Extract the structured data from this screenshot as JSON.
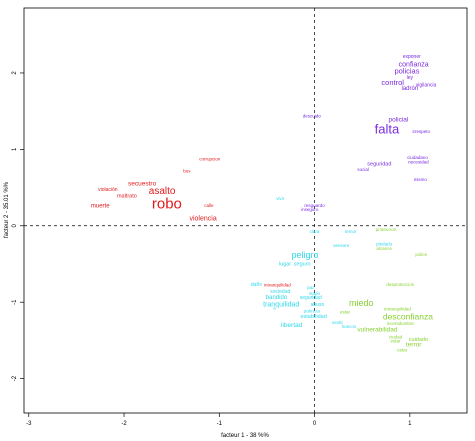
{
  "chart_data": {
    "type": "scatter",
    "title": "",
    "xlabel": "facteur 1 - 38 %%",
    "ylabel": "facteur 2 - 35.01 %%",
    "xlim": [
      -3.05,
      1.6
    ],
    "ylim": [
      -2.45,
      2.85
    ],
    "x_ticks": [
      -3,
      -2,
      -1,
      0,
      1
    ],
    "y_ticks": [
      -2,
      -1,
      0,
      1,
      2
    ],
    "reference_lines": {
      "x": 0,
      "y": 0,
      "style": "dashed"
    },
    "grid": false,
    "legend": "none",
    "colors": {
      "red": "#e31a1c",
      "purple": "#7a2be0",
      "cyan": "#2fd8ea",
      "green": "#86d130"
    },
    "points": [
      {
        "label": "exponer",
        "x": 1.02,
        "y": 2.21,
        "color": "purple",
        "size": 5
      },
      {
        "label": "confianza",
        "x": 1.04,
        "y": 2.11,
        "color": "purple",
        "size": 7
      },
      {
        "label": "policias",
        "x": 0.97,
        "y": 2.02,
        "color": "purple",
        "size": 7.5
      },
      {
        "label": "ley",
        "x": 1.0,
        "y": 1.94,
        "color": "purple",
        "size": 5
      },
      {
        "label": "control",
        "x": 0.82,
        "y": 1.87,
        "color": "purple",
        "size": 7.5
      },
      {
        "label": "ladrón",
        "x": 1.0,
        "y": 1.8,
        "color": "purple",
        "size": 6
      },
      {
        "label": "vigilancia",
        "x": 1.17,
        "y": 1.84,
        "color": "purple",
        "size": 5
      },
      {
        "label": "descuido",
        "x": -0.03,
        "y": 1.43,
        "color": "purple",
        "size": 4.5
      },
      {
        "label": "policial",
        "x": 0.88,
        "y": 1.39,
        "color": "purple",
        "size": 6.5
      },
      {
        "label": "falta",
        "x": 0.76,
        "y": 1.25,
        "color": "purple",
        "size": 13
      },
      {
        "label": "irrespeto",
        "x": 1.12,
        "y": 1.23,
        "color": "purple",
        "size": 4.5
      },
      {
        "label": "ciudadano",
        "x": 1.08,
        "y": 0.89,
        "color": "purple",
        "size": 4.5
      },
      {
        "label": "seguridad",
        "x": 0.68,
        "y": 0.81,
        "color": "purple",
        "size": 5.5
      },
      {
        "label": "necesidad",
        "x": 1.09,
        "y": 0.83,
        "color": "purple",
        "size": 4.5
      },
      {
        "label": "social",
        "x": 0.51,
        "y": 0.73,
        "color": "purple",
        "size": 4.5
      },
      {
        "label": "mismo",
        "x": 1.11,
        "y": 0.6,
        "color": "purple",
        "size": 4.5
      },
      {
        "label": "resguardo",
        "x": 0.0,
        "y": 0.26,
        "color": "purple",
        "size": 4.5
      },
      {
        "label": "inseguro",
        "x": -0.05,
        "y": 0.21,
        "color": "purple",
        "size": 4.5
      },
      {
        "label": "corrupcion",
        "x": -1.1,
        "y": 0.87,
        "color": "red",
        "size": 4.5
      },
      {
        "label": "bus",
        "x": -1.34,
        "y": 0.71,
        "color": "red",
        "size": 4.5
      },
      {
        "label": "secuestro",
        "x": -1.81,
        "y": 0.55,
        "color": "red",
        "size": 6.5
      },
      {
        "label": "asalto",
        "x": -1.6,
        "y": 0.45,
        "color": "red",
        "size": 10
      },
      {
        "label": "violación",
        "x": -2.17,
        "y": 0.47,
        "color": "red",
        "size": 5
      },
      {
        "label": "maltrato",
        "x": -1.97,
        "y": 0.39,
        "color": "red",
        "size": 5.5
      },
      {
        "label": "robo",
        "x": -1.55,
        "y": 0.28,
        "color": "red",
        "size": 15
      },
      {
        "label": "muerte",
        "x": -2.25,
        "y": 0.26,
        "color": "red",
        "size": 6
      },
      {
        "label": "calle",
        "x": -1.11,
        "y": 0.26,
        "color": "red",
        "size": 4.5
      },
      {
        "label": "violencia",
        "x": -1.17,
        "y": 0.09,
        "color": "red",
        "size": 7
      },
      {
        "label": "vivir",
        "x": -0.36,
        "y": 0.35,
        "color": "cyan",
        "size": 4.5
      },
      {
        "label": "clara",
        "x": 0.0,
        "y": -0.08,
        "color": "cyan",
        "size": 4.5
      },
      {
        "label": "temor",
        "x": 0.38,
        "y": -0.08,
        "color": "cyan",
        "size": 4.5
      },
      {
        "label": "sensore",
        "x": 0.28,
        "y": -0.26,
        "color": "cyan",
        "size": 4.5
      },
      {
        "label": "peligro",
        "x": -0.1,
        "y": -0.39,
        "color": "cyan",
        "size": 9
      },
      {
        "label": "lugar",
        "x": -0.31,
        "y": -0.5,
        "color": "cyan",
        "size": 5.5
      },
      {
        "label": "seguro",
        "x": -0.13,
        "y": -0.5,
        "color": "cyan",
        "size": 5.5
      },
      {
        "label": "pitufado",
        "x": 0.73,
        "y": -0.24,
        "color": "cyan",
        "size": 4.5
      },
      {
        "label": "proteccion",
        "x": 0.75,
        "y": -0.05,
        "color": "green",
        "size": 4.5
      },
      {
        "label": "alcance",
        "x": 0.73,
        "y": -0.3,
        "color": "green",
        "size": 4.5
      },
      {
        "label": "police",
        "x": 1.12,
        "y": -0.38,
        "color": "green",
        "size": 4.5
      },
      {
        "label": "desproteccion",
        "x": 0.9,
        "y": -0.77,
        "color": "green",
        "size": 4.5
      },
      {
        "label": "daño",
        "x": -0.61,
        "y": -0.77,
        "color": "cyan",
        "size": 5
      },
      {
        "label": "intranquilidad",
        "x": -0.39,
        "y": -0.78,
        "color": "red",
        "size": 4.5
      },
      {
        "label": "sociedad",
        "x": -0.36,
        "y": -0.86,
        "color": "cyan",
        "size": 5
      },
      {
        "label": "paz",
        "x": -0.04,
        "y": -0.81,
        "color": "cyan",
        "size": 4.5
      },
      {
        "label": "bandido",
        "x": -0.4,
        "y": -0.94,
        "color": "cyan",
        "size": 6
      },
      {
        "label": "seguridad",
        "x": -0.04,
        "y": -0.94,
        "color": "cyan",
        "size": 5
      },
      {
        "label": "stado",
        "x": 0.0,
        "y": -0.89,
        "color": "cyan",
        "size": 4.5
      },
      {
        "label": "tranquilidad",
        "x": -0.35,
        "y": -1.03,
        "color": "cyan",
        "size": 7
      },
      {
        "label": "abuso",
        "x": 0.03,
        "y": -1.03,
        "color": "cyan",
        "size": 5
      },
      {
        "label": "a",
        "x": -0.42,
        "y": -1.08,
        "color": "cyan",
        "size": 4.5
      },
      {
        "label": "pobreza",
        "x": -0.03,
        "y": -1.12,
        "color": "cyan",
        "size": 4.5
      },
      {
        "label": "estabilidad",
        "x": -0.01,
        "y": -1.19,
        "color": "cyan",
        "size": 5.5
      },
      {
        "label": "libertad",
        "x": -0.24,
        "y": -1.3,
        "color": "cyan",
        "size": 6.5
      },
      {
        "label": "sentir",
        "x": 0.24,
        "y": -1.27,
        "color": "cyan",
        "size": 4.5
      },
      {
        "label": "huecos",
        "x": 0.36,
        "y": -1.32,
        "color": "cyan",
        "size": 4.5
      },
      {
        "label": "miedo",
        "x": 0.49,
        "y": -1.02,
        "color": "green",
        "size": 9
      },
      {
        "label": "estar",
        "x": 0.32,
        "y": -1.13,
        "color": "green",
        "size": 4.5
      },
      {
        "label": "intranquilidad",
        "x": 0.87,
        "y": -1.09,
        "color": "green",
        "size": 4.5
      },
      {
        "label": "desconfianza",
        "x": 0.98,
        "y": -1.2,
        "color": "green",
        "size": 8.5
      },
      {
        "label": "incertidumbre",
        "x": 0.9,
        "y": -1.28,
        "color": "green",
        "size": 4.5
      },
      {
        "label": "vulnerabilidad",
        "x": 0.66,
        "y": -1.36,
        "color": "green",
        "size": 6.5
      },
      {
        "label": "ciudad",
        "x": 0.85,
        "y": -1.46,
        "color": "green",
        "size": 4.5
      },
      {
        "label": "estar",
        "x": 0.85,
        "y": -1.51,
        "color": "green",
        "size": 4.5
      },
      {
        "label": "cuidado",
        "x": 1.09,
        "y": -1.49,
        "color": "green",
        "size": 5.5
      },
      {
        "label": "terror",
        "x": 1.04,
        "y": -1.56,
        "color": "green",
        "size": 6.5
      },
      {
        "label": "estar",
        "x": 0.92,
        "y": -1.63,
        "color": "green",
        "size": 4.5
      }
    ]
  }
}
